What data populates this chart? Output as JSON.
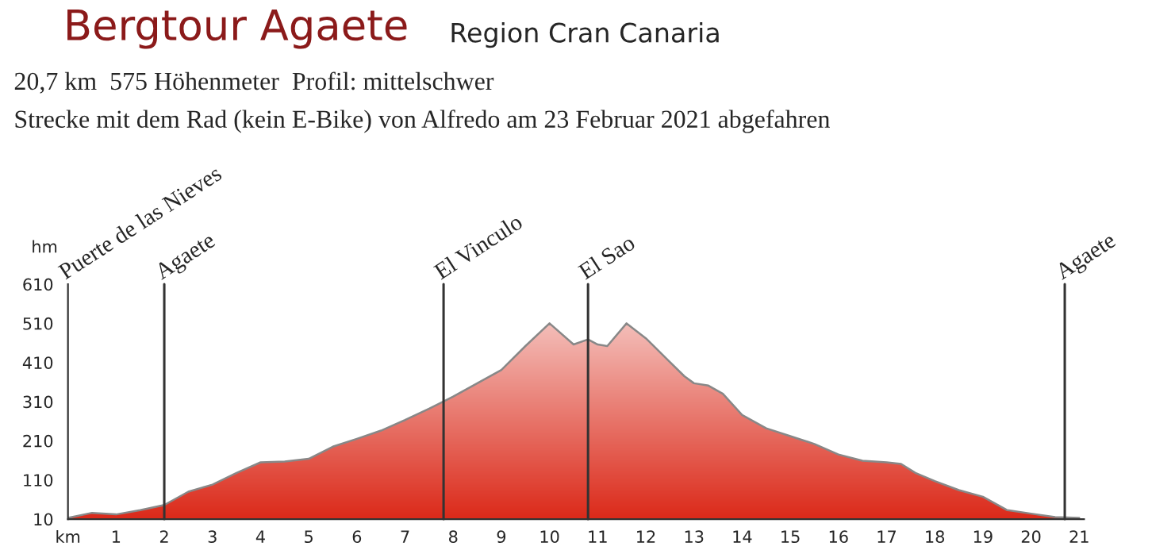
{
  "chart_data": {
    "type": "area",
    "title": "Bergtour Agaete",
    "subtitle": "Region Cran Canaria",
    "annotations": [
      "20,7 km  575 Höhenmeter  Profil: mittelschwer",
      "Strecke mit dem Rad (kein E-Bike) von Alfredo am 23 Februar 2021 abgefahren",
      "Puerte de las Nieves"
    ],
    "ylabel": "hm",
    "x": [
      0,
      0.5,
      1,
      1.5,
      2,
      2.5,
      3,
      3.5,
      4,
      4.5,
      5,
      5.5,
      6,
      6.5,
      7,
      7.5,
      8,
      8.5,
      9,
      9.5,
      10,
      10.5,
      10.8,
      11,
      11.2,
      11.6,
      12,
      12.5,
      12.8,
      13,
      13.3,
      13.6,
      14,
      14.5,
      15,
      15.5,
      16,
      16.5,
      17,
      17.3,
      17.6,
      18,
      18.5,
      19,
      19.5,
      20,
      20.5,
      21
    ],
    "series": [
      {
        "color": "#dc2a1a",
        "values": [
          13,
          26,
          22,
          33,
          46,
          80,
          98,
          128,
          155,
          157,
          164,
          195,
          215,
          236,
          263,
          292,
          323,
          357,
          391,
          452,
          510,
          456,
          469,
          456,
          452,
          510,
          472,
          411,
          375,
          357,
          351,
          330,
          276,
          242,
          222,
          202,
          175,
          159,
          155,
          151,
          128,
          107,
          84,
          67,
          33,
          24,
          15,
          13
        ]
      }
    ],
    "xlim": [
      0,
      21.1
    ],
    "ylim": [
      10,
      610
    ],
    "xticks": [
      {
        "value": 0,
        "label": "km"
      },
      1,
      2,
      3,
      4,
      5,
      6,
      7,
      8,
      9,
      10,
      11,
      12,
      13,
      14,
      15,
      16,
      17,
      18,
      19,
      20,
      21
    ],
    "yticks": [
      10,
      110,
      210,
      310,
      410,
      510,
      610
    ],
    "ref_lines": [
      {
        "axis": "x",
        "value": 2,
        "label": "Agaete"
      },
      {
        "axis": "x",
        "value": 7.8,
        "label": "El Vinculo"
      },
      {
        "axis": "x",
        "value": 10.8,
        "label": "El Sao"
      },
      {
        "axis": "x",
        "value": 20.7,
        "label": "Agaete"
      }
    ],
    "grid": false,
    "legend": false
  }
}
